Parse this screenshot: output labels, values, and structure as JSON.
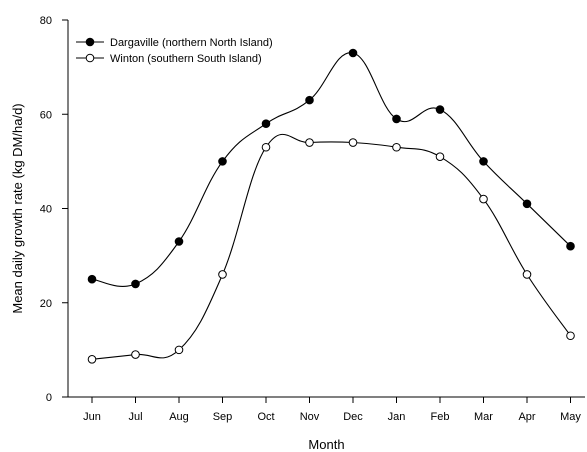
{
  "chart_data": {
    "type": "line",
    "xlabel": "Month",
    "ylabel": "Mean daily growth rate (kg DM/ha/d)",
    "categories": [
      "Jun",
      "Jul",
      "Aug",
      "Sep",
      "Oct",
      "Nov",
      "Dec",
      "Jan",
      "Feb",
      "Mar",
      "Apr",
      "May"
    ],
    "ylim": [
      0,
      80
    ],
    "yticks": [
      0,
      20,
      40,
      60,
      80
    ],
    "grid": false,
    "legend_position": "top-left",
    "series": [
      {
        "name": "Dargaville (northern North Island)",
        "marker": "filled-circle",
        "color": "#000000",
        "values": [
          25,
          24,
          33,
          50,
          58,
          63,
          73,
          59,
          61,
          50,
          41,
          32
        ]
      },
      {
        "name": "Winton (southern South Island)",
        "marker": "open-circle",
        "color": "#000000",
        "values": [
          8,
          9,
          10,
          26,
          53,
          54,
          54,
          53,
          51,
          42,
          26,
          13
        ]
      }
    ]
  }
}
